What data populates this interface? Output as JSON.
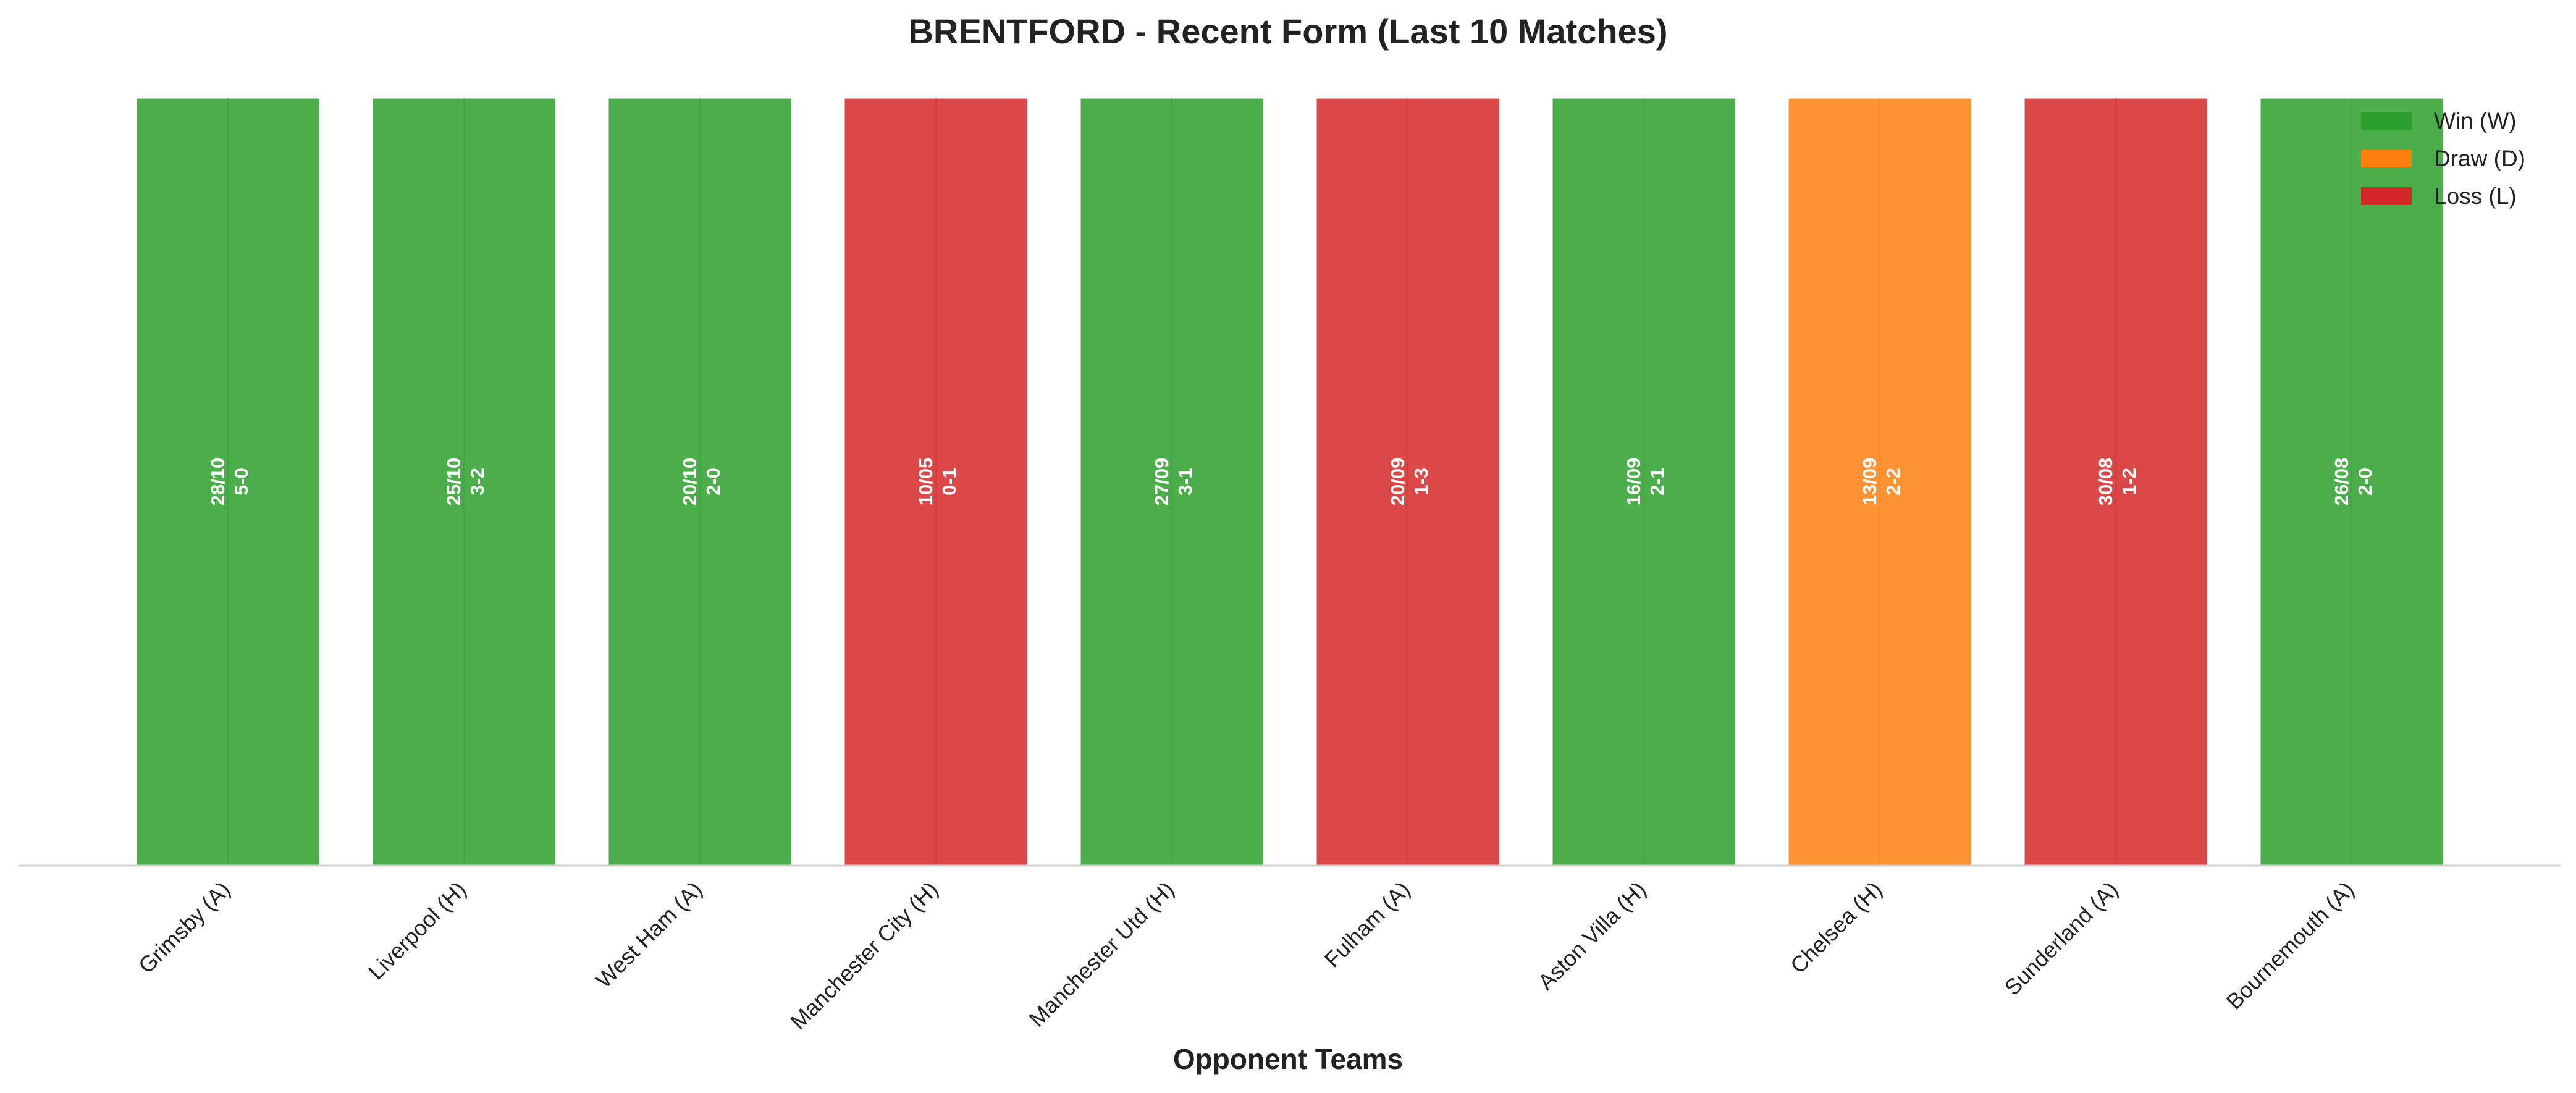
{
  "chart_data": {
    "type": "bar",
    "title": "BRENTFORD - Recent Form (Last 10 Matches)",
    "xlabel": "Opponent Teams",
    "ylabel": "",
    "ylim": [
      0,
      1
    ],
    "grid": false,
    "legend_position": "top-right",
    "categories": [
      "Grimsby (A)",
      "Liverpool (H)",
      "West Ham (A)",
      "Manchester City (H)",
      "Manchester Utd (H)",
      "Fulham (A)",
      "Aston Villa (H)",
      "Chelsea (H)",
      "Sunderland (A)",
      "Bournemouth (A)"
    ],
    "values": [
      1,
      1,
      1,
      1,
      1,
      1,
      1,
      1,
      1,
      1
    ],
    "results": [
      "W",
      "W",
      "W",
      "L",
      "W",
      "L",
      "W",
      "D",
      "L",
      "W"
    ],
    "dates": [
      "28/10",
      "25/10",
      "20/10",
      "10/05",
      "27/09",
      "20/09",
      "16/09",
      "13/09",
      "30/08",
      "26/08"
    ],
    "scores": [
      "5-0",
      "3-2",
      "2-0",
      "0-1",
      "3-1",
      "1-3",
      "2-1",
      "2-2",
      "1-2",
      "2-0"
    ],
    "legend": [
      {
        "key": "W",
        "label": "Win (W)"
      },
      {
        "key": "D",
        "label": "Draw (D)"
      },
      {
        "key": "L",
        "label": "Loss (L)"
      }
    ],
    "colors": {
      "W": "#2ca02c",
      "D": "#ff7f0e",
      "L": "#d62728"
    }
  }
}
